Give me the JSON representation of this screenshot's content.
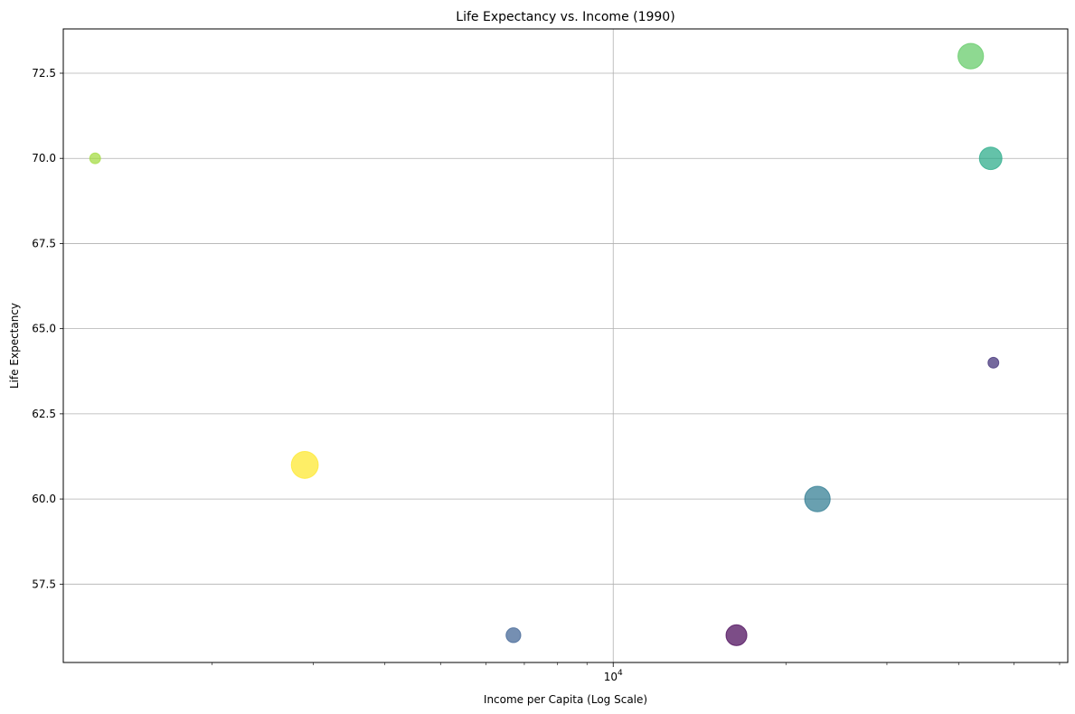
{
  "chart_data": {
    "type": "scatter",
    "title": "Life Expectancy vs. Income (1990)",
    "xlabel": "Income per Capita (Log Scale)",
    "ylabel": "Life Expectancy",
    "x_scale": "log",
    "xlim": [
      1100,
      62000
    ],
    "ylim": [
      55.2,
      73.8
    ],
    "grid": true,
    "x_ticks_major": [
      10000
    ],
    "x_tick_labels": [
      "10^4"
    ],
    "y_ticks": [
      57.5,
      60.0,
      62.5,
      65.0,
      67.5,
      70.0,
      72.5
    ],
    "y_tick_labels": [
      "57.5",
      "60.0",
      "62.5",
      "65.0",
      "67.5",
      "70.0",
      "72.5"
    ],
    "colormap": "viridis",
    "points": [
      {
        "x": 1250,
        "y": 70,
        "size": 80,
        "color": "#a0da39"
      },
      {
        "x": 2900,
        "y": 61,
        "size": 500,
        "color": "#fde725"
      },
      {
        "x": 6700,
        "y": 56,
        "size": 150,
        "color": "#3b5f92"
      },
      {
        "x": 16400,
        "y": 56,
        "size": 300,
        "color": "#440154"
      },
      {
        "x": 22700,
        "y": 60,
        "size": 450,
        "color": "#2a788e"
      },
      {
        "x": 42000,
        "y": 73,
        "size": 450,
        "color": "#5ec962"
      },
      {
        "x": 45500,
        "y": 70,
        "size": 350,
        "color": "#22a884"
      },
      {
        "x": 46000,
        "y": 64,
        "size": 80,
        "color": "#3b2a74"
      }
    ]
  }
}
